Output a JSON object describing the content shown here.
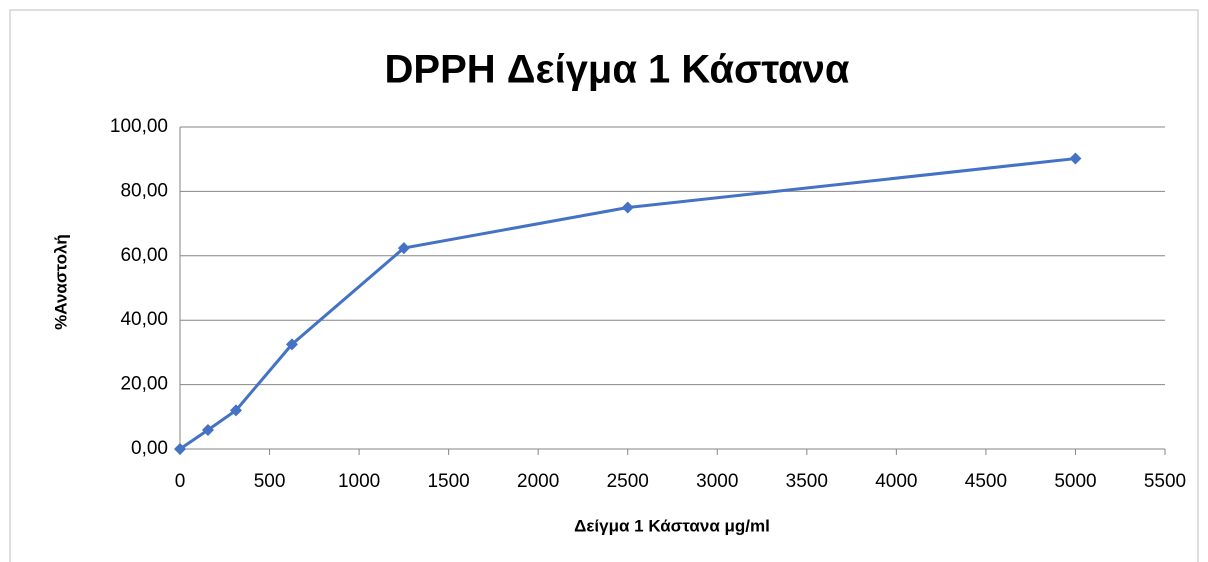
{
  "chart_data": {
    "type": "line",
    "title": "DPPH Δείγμα 1 Κάστανα",
    "x_label": "Δείγμα 1 Κάστανα μg/ml",
    "y_label": "%Αναστολή",
    "x": [
      0,
      156.25,
      312.5,
      625,
      1250,
      2500,
      5000
    ],
    "series": [
      {
        "name": "DPPH Δείγμα 1 Κάστανα",
        "color": "#4472c4",
        "values": [
          0,
          5.9,
          12.0,
          32.5,
          62.4,
          75.0,
          90.2
        ]
      }
    ],
    "xlim": [
      0,
      5500
    ],
    "xticks": [
      0,
      500,
      1000,
      1500,
      2000,
      2500,
      3000,
      3500,
      4000,
      4500,
      5000,
      5500
    ],
    "ylim": [
      0,
      100
    ],
    "yticks": [
      {
        "value": 0,
        "label": "0,00"
      },
      {
        "value": 20,
        "label": "20,00"
      },
      {
        "value": 40,
        "label": "40,00"
      },
      {
        "value": 60,
        "label": "60,00"
      },
      {
        "value": 80,
        "label": "80,00"
      },
      {
        "value": 100,
        "label": "100,00"
      }
    ],
    "grid": true
  }
}
